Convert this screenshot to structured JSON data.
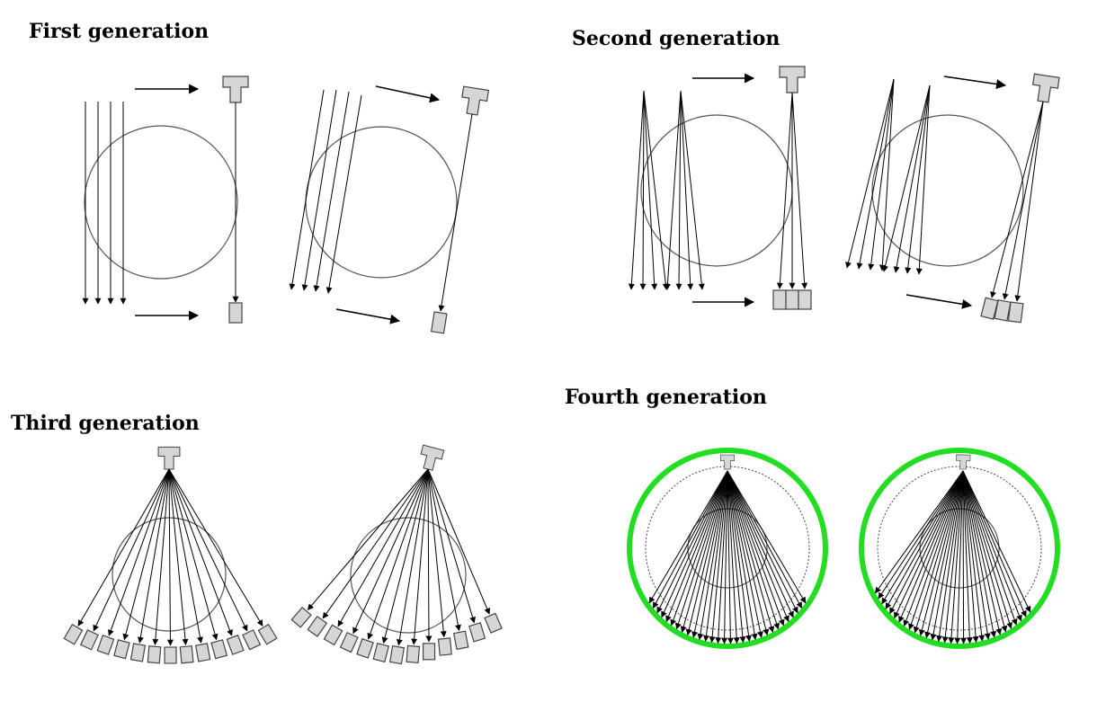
{
  "titles": {
    "first": "First generation",
    "second": "Second generation",
    "third": "Third generation",
    "fourth": "Fourth generation"
  },
  "colors": {
    "ring": "#22dd22",
    "part_fill": "#d6d6d6",
    "part_stroke": "#444444",
    "line": "#000000"
  }
}
